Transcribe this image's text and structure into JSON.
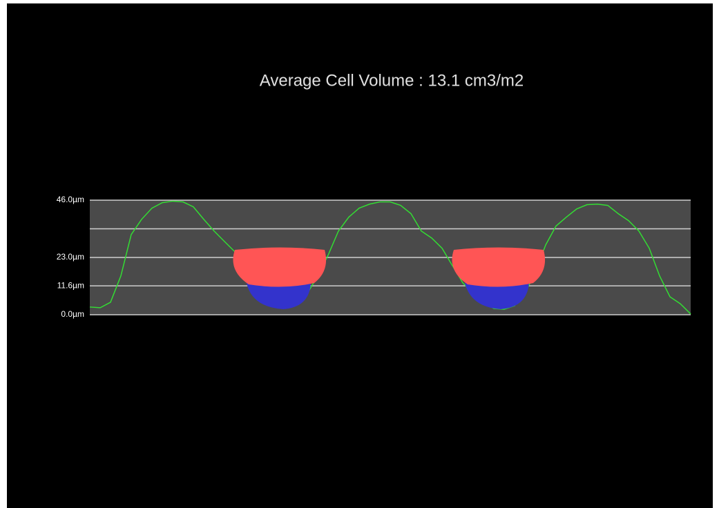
{
  "chart_data": {
    "type": "line",
    "title": "Average Cell Volume :  13.1  cm3/m2",
    "color": "#33dd33",
    "plot_background": "#4a4a4a",
    "grid": true,
    "values": [
      3.1,
      2.8,
      5,
      15.6,
      32.2,
      38.3,
      42.8,
      45,
      45.6,
      45.3,
      43.3,
      38.3,
      33.6,
      29.4,
      25.3,
      19.7,
      10.6,
      5.8,
      3.3,
      2.8,
      4.4,
      8.6,
      15.6,
      23.9,
      33.6,
      39.2,
      42.8,
      44.4,
      45.3,
      45.3,
      43.9,
      40.6,
      33.6,
      30.8,
      26.7,
      19.7,
      12.8,
      8.6,
      5,
      2.5,
      2.2,
      3.6,
      8.6,
      16.9,
      28,
      35.6,
      39.2,
      42.5,
      44.2,
      44.4,
      43.9,
      40.6,
      37.8,
      33.6,
      26.7,
      15.6,
      7.2,
      4.4,
      0.3
    ],
    "ylim": [
      0,
      46
    ],
    "yticks": [
      {
        "value": 0,
        "label": "0.0µm"
      },
      {
        "value": 11.6,
        "label": "11.6µm"
      },
      {
        "value": 23,
        "label": "23.0µm"
      },
      {
        "value": 34.5,
        "label": null
      },
      {
        "value": 46,
        "label": "46.0µm"
      }
    ]
  }
}
